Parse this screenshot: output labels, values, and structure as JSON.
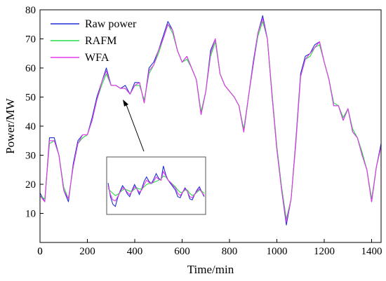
{
  "chart_data": {
    "type": "line",
    "title": "",
    "xlabel": "Time/min",
    "ylabel": "Power/MW",
    "xlim": [
      0,
      1440
    ],
    "ylim": [
      0,
      80
    ],
    "xticks": [
      0,
      200,
      400,
      600,
      800,
      1000,
      1200,
      1400
    ],
    "yticks": [
      10,
      20,
      30,
      40,
      50,
      60,
      70,
      80
    ],
    "grid": false,
    "legend_position": "top-left",
    "x": [
      0,
      20,
      40,
      60,
      80,
      100,
      120,
      140,
      160,
      180,
      200,
      220,
      240,
      260,
      280,
      300,
      320,
      340,
      360,
      380,
      400,
      420,
      440,
      460,
      480,
      500,
      520,
      540,
      560,
      580,
      600,
      620,
      640,
      660,
      680,
      700,
      720,
      740,
      760,
      780,
      800,
      820,
      840,
      860,
      880,
      900,
      920,
      940,
      960,
      980,
      1000,
      1020,
      1040,
      1060,
      1080,
      1100,
      1120,
      1140,
      1160,
      1180,
      1200,
      1220,
      1240,
      1260,
      1280,
      1300,
      1320,
      1340,
      1360,
      1380,
      1400,
      1420,
      1440
    ],
    "series": [
      {
        "name": "Raw power",
        "color": "#1f2fd6",
        "values": [
          17,
          14,
          36,
          36,
          30,
          18,
          14,
          27,
          35,
          37,
          37,
          43,
          50,
          55,
          60,
          54,
          54,
          53,
          54,
          51,
          55,
          55,
          48,
          60,
          62,
          66,
          71,
          76,
          73,
          66,
          62,
          64,
          60,
          56,
          44,
          52,
          66,
          70,
          58,
          54,
          52,
          50,
          47,
          38,
          50,
          62,
          72,
          78,
          70,
          50,
          32,
          18,
          6,
          15,
          35,
          58,
          64,
          65,
          68,
          69,
          62,
          56,
          47,
          47,
          42,
          46,
          38,
          36,
          30,
          25,
          14,
          26,
          34
        ]
      },
      {
        "name": "RAFM",
        "color": "#22dd44",
        "values": [
          16,
          15,
          34,
          35,
          30,
          19,
          15,
          26,
          34,
          36,
          37,
          42,
          49,
          54,
          58,
          54,
          54,
          53,
          53,
          51,
          54,
          54,
          49,
          58,
          61,
          65,
          70,
          75,
          72,
          66,
          62,
          63,
          60,
          56,
          45,
          52,
          64,
          69,
          58,
          54,
          52,
          50,
          47,
          39,
          50,
          61,
          71,
          76,
          70,
          51,
          33,
          19,
          8,
          15,
          34,
          57,
          63,
          64,
          67,
          68,
          62,
          56,
          48,
          47,
          43,
          46,
          39,
          36,
          31,
          25,
          15,
          26,
          33
        ]
      },
      {
        "name": "WFA",
        "color": "#e838e8",
        "values": [
          16,
          14,
          35,
          35,
          30,
          18,
          15,
          26,
          34,
          37,
          37,
          42,
          49,
          55,
          59,
          54,
          54,
          53,
          53,
          51,
          54,
          55,
          48,
          59,
          61,
          66,
          70,
          75,
          73,
          66,
          62,
          64,
          60,
          56,
          44,
          52,
          65,
          70,
          58,
          54,
          52,
          50,
          47,
          38,
          50,
          61,
          72,
          77,
          70,
          50,
          32,
          18,
          7,
          15,
          34,
          57,
          63,
          65,
          67,
          69,
          62,
          56,
          47,
          47,
          42,
          46,
          38,
          36,
          30,
          25,
          14,
          26,
          33
        ]
      }
    ],
    "inset": {
      "x": [
        0,
        1,
        2,
        3,
        4,
        5,
        6,
        7,
        8,
        9,
        10,
        11,
        12,
        13,
        14,
        15,
        16,
        17,
        18,
        19,
        20,
        21,
        22,
        23,
        24,
        25,
        26,
        27,
        28,
        29,
        30,
        31,
        32,
        33,
        34,
        35,
        36,
        37,
        38,
        39,
        40
      ],
      "ylim": [
        0,
        10
      ],
      "series": [
        {
          "name": "Raw power",
          "color": "#1f2fd6",
          "values": [
            5.5,
            3.0,
            1.6,
            1.2,
            2.8,
            4.0,
            5.0,
            4.4,
            3.5,
            3.0,
            4.2,
            5.2,
            4.4,
            3.4,
            4.4,
            5.8,
            6.6,
            5.8,
            5.4,
            6.2,
            7.2,
            6.4,
            6.0,
            8.6,
            7.0,
            6.0,
            5.4,
            4.8,
            4.2,
            3.0,
            2.8,
            3.8,
            4.6,
            4.0,
            2.6,
            2.4,
            3.4,
            4.2,
            4.8,
            3.8,
            3.0
          ]
        },
        {
          "name": "RAFM",
          "color": "#22dd44",
          "values": [
            4.5,
            4.0,
            3.6,
            3.2,
            3.4,
            3.8,
            4.2,
            4.4,
            4.2,
            4.0,
            4.0,
            4.4,
            4.6,
            4.4,
            4.4,
            4.8,
            5.2,
            5.4,
            5.4,
            5.6,
            5.8,
            6.0,
            6.2,
            6.8,
            6.6,
            6.0,
            5.6,
            5.2,
            4.8,
            4.2,
            3.8,
            3.8,
            4.2,
            4.2,
            3.6,
            3.2,
            3.4,
            3.8,
            4.2,
            4.0,
            3.6
          ]
        },
        {
          "name": "WFA",
          "color": "#e838e8",
          "values": [
            5.0,
            3.4,
            2.4,
            2.2,
            3.0,
            3.8,
            4.6,
            4.4,
            3.8,
            3.4,
            4.0,
            4.8,
            4.4,
            3.8,
            4.2,
            5.2,
            6.0,
            5.6,
            5.4,
            5.8,
            6.6,
            6.2,
            6.0,
            7.6,
            6.8,
            6.0,
            5.6,
            5.0,
            4.6,
            3.6,
            3.2,
            3.8,
            4.4,
            4.0,
            3.0,
            2.8,
            3.4,
            4.0,
            4.4,
            3.8,
            3.2
          ]
        }
      ]
    }
  }
}
